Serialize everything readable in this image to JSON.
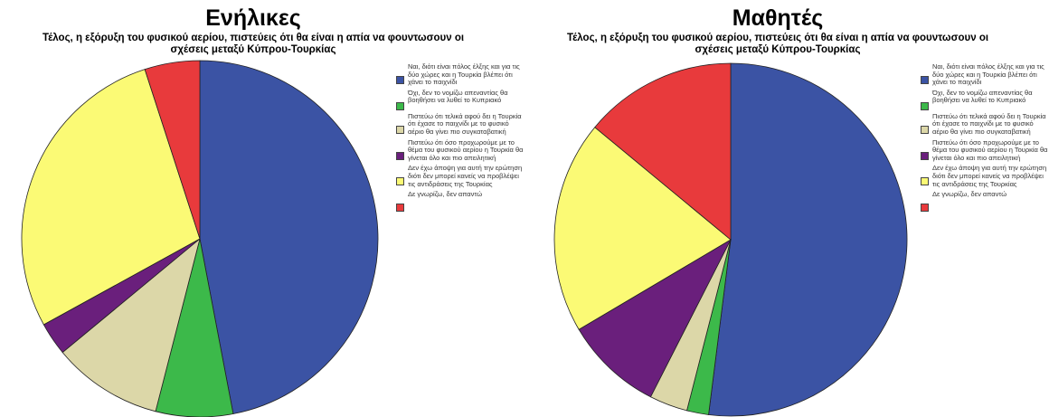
{
  "chart_data": [
    {
      "type": "pie",
      "title": "Ενήλικες",
      "subtitle": "Τέλος, η εξόρυξη του φυσικού αερίου, πιστεύεις ότι θα είναι η απία να φουντωσουν οι σχέσεις μεταξύ Κύπρου-Τουρκίας",
      "legend_position": "right",
      "slices": [
        {
          "label": "Ναι, διότι είναι πόλος έλξης και για τις δύο χώρες και η Τουρκία βλέπει ότι χάνει το παιχνίδι",
          "value": 47,
          "color": "#3b53a4"
        },
        {
          "label": "Όχι, δεν το νομίζω απεναντίας θα βοηθήσει να λυθεί το Κυπριακό",
          "value": 7,
          "color": "#3cb94a"
        },
        {
          "label": "Πιστεύω ότι τελικά αφού δει η Τουρκία ότι έχασε το παιχνίδι με το φυσικό αέριο θα γίνει πιο συγκαταβατική",
          "value": 10,
          "color": "#dcd7a8"
        },
        {
          "label": "Πιστεύω ότι όσο προχωρούμε με το θέμα του φυσικού αερίου η Τουρκία θα γίνεται όλο και πιο απειλητική",
          "value": 3,
          "color": "#6a1f7c"
        },
        {
          "label": "Δεν έχω άποψη για αυτή την ερώτηση διότι δεν μπορεί κανείς να προβλέψει τις αντιδράσεις της Τουρκίας",
          "value": 28,
          "color": "#fbfa75"
        },
        {
          "label": "Δε γνωρίζω, δεν απαντώ",
          "value": 5,
          "color": "#e83a3c"
        }
      ]
    },
    {
      "type": "pie",
      "title": "Μαθητές",
      "subtitle": "Τέλος, η εξόρυξη του φυσικού αερίου, πιστεύεις ότι θα είναι η απία να φουντωσουν οι σχέσεις μεταξύ Κύπρου-Τουρκίας",
      "legend_position": "right",
      "slices": [
        {
          "label": "Ναι, διότι είναι πόλος έλξης και για τις δύο χώρες και η Τουρκία βλέπει ότι χάνει το παιχνίδι",
          "value": 52,
          "color": "#3b53a4"
        },
        {
          "label": "Όχι, δεν το νομίζω απεναντίας θα βοηθήσει να λυθεί το Κυπριακό",
          "value": 2,
          "color": "#3cb94a"
        },
        {
          "label": "Πιστεύω ότι τελικά αφού δει η Τουρκία ότι έχασε το παιχνίδι με το φυσικό αέριο θα γίνει πιο συγκαταβατική",
          "value": 3.5,
          "color": "#dcd7a8"
        },
        {
          "label": "Πιστεύω ότι όσο προχωρούμε με το θέμα του φυσικού αερίου η Τουρκία θα γίνεται όλο και πιο απειλητική",
          "value": 9,
          "color": "#6a1f7c"
        },
        {
          "label": "Δεν έχω άποψη για αυτή την ερώτηση διότι δεν μπορεί κανείς να προβλέψει τις αντιδράσεις της Τουρκίας",
          "value": 19.5,
          "color": "#fbfa75"
        },
        {
          "label": "Δε γνωρίζω, δεν απαντώ",
          "value": 14,
          "color": "#e83a3c"
        }
      ]
    }
  ]
}
